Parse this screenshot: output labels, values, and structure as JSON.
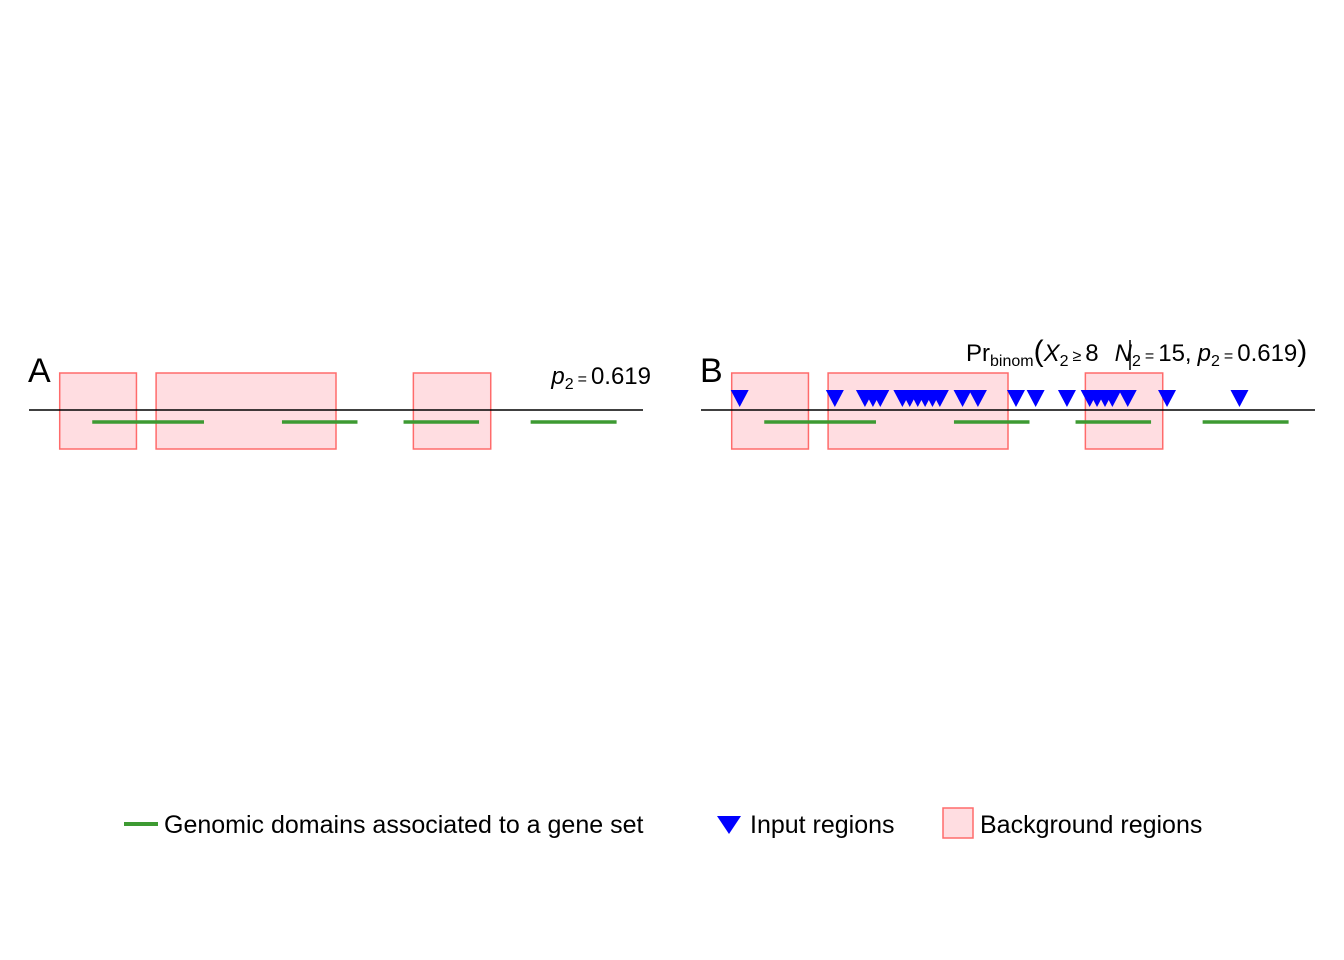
{
  "colors": {
    "domain_line": "#3d9a32",
    "input_marker": "#0000ff",
    "background_fill": "#ffdde1",
    "background_stroke": "#ff6b6b",
    "axis": "#000000"
  },
  "panels": [
    {
      "label": "A",
      "annotation": {
        "p_var": "p",
        "p_sub": "2",
        "eq": "=",
        "p_value": "0.619"
      },
      "background_regions": [
        [
          0.05,
          0.175
        ],
        [
          0.207,
          0.5
        ],
        [
          0.626,
          0.752
        ]
      ],
      "gene_set_domains": [
        [
          0.103,
          0.285
        ],
        [
          0.412,
          0.535
        ],
        [
          0.61,
          0.733
        ],
        [
          0.817,
          0.957
        ]
      ],
      "input_regions": []
    },
    {
      "label": "B",
      "annotation": {
        "pr": "Pr",
        "pr_sub": "binom",
        "open_paren": "(",
        "x_var": "X",
        "x_sub": "2",
        "geq": "≥",
        "k": "8",
        "n_var": "N",
        "n_sub": "2",
        "eq": "=",
        "n_value": "15,",
        "p_var": "p",
        "p_sub": "2",
        "eq2": "=",
        "p_value": "0.619",
        "close_paren": ")"
      },
      "background_regions": [
        [
          0.05,
          0.175
        ],
        [
          0.207,
          0.5
        ],
        [
          0.626,
          0.752
        ]
      ],
      "gene_set_domains": [
        [
          0.103,
          0.285
        ],
        [
          0.412,
          0.535
        ],
        [
          0.61,
          0.733
        ],
        [
          0.817,
          0.957
        ]
      ],
      "input_regions": [
        0.063,
        0.218,
        0.267,
        0.28,
        0.292,
        0.328,
        0.34,
        0.353,
        0.365,
        0.377,
        0.389,
        0.426,
        0.451,
        0.513,
        0.545,
        0.596,
        0.633,
        0.645,
        0.658,
        0.67,
        0.695,
        0.759,
        0.877
      ]
    }
  ],
  "legend": {
    "items": [
      {
        "label": "Genomic domains associated to a gene set",
        "symbol": "line"
      },
      {
        "label": "Input regions",
        "symbol": "triangle"
      },
      {
        "label": "Background regions",
        "symbol": "box"
      }
    ]
  }
}
